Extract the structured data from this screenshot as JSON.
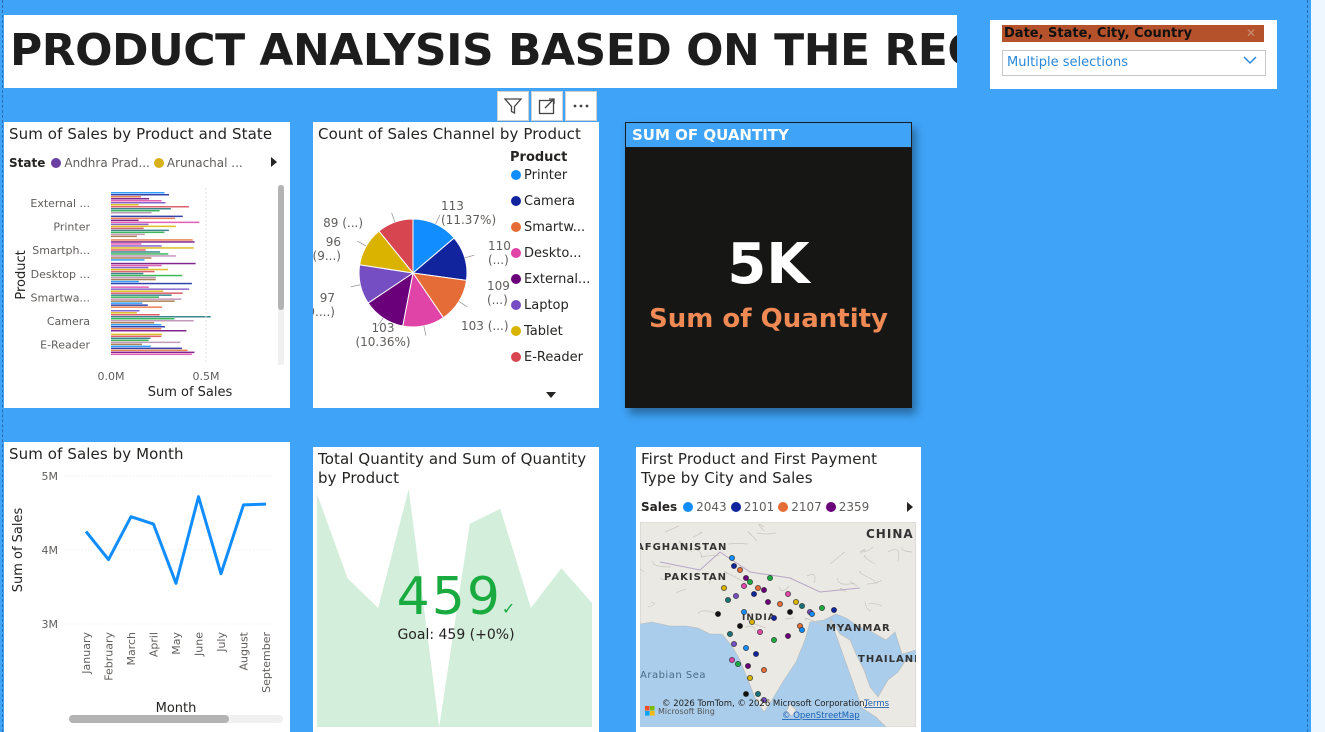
{
  "page_title": "PRODUCT ANALYSIS BASED ON THE REGION",
  "slicer": {
    "header": "Date, State, City, Country",
    "value": "Multiple selections"
  },
  "toolbar": {
    "icons": [
      "filter-icon",
      "focus-mode-icon",
      "more-options-icon"
    ]
  },
  "bar_visual": {
    "title": "Sum of Sales by Product and State",
    "legend_title": "State",
    "legend_items": [
      {
        "label": "Andhra Prad...",
        "color": "#6b3fa0"
      },
      {
        "label": "Arunachal ...",
        "color": "#d6b11a"
      }
    ]
  },
  "pie_visual": {
    "title": "Count of Sales Channel by Product",
    "legend_title": "Product",
    "legend_items": [
      {
        "label": "Printer",
        "color": "#118dff"
      },
      {
        "label": "Camera",
        "color": "#12239e"
      },
      {
        "label": "Smartw...",
        "color": "#e66c37"
      },
      {
        "label": "Deskto...",
        "color": "#e044a7"
      },
      {
        "label": "External...",
        "color": "#6b007b"
      },
      {
        "label": "Laptop",
        "color": "#744ec2"
      },
      {
        "label": "Tablet",
        "color": "#d9b300"
      },
      {
        "label": "E-Reader",
        "color": "#d64550"
      }
    ]
  },
  "kpi_card": {
    "header": "SUM OF QUANTITY",
    "value": "5K",
    "label": "Sum of Quantity"
  },
  "line_visual": {
    "title": "Sum of Sales by Month"
  },
  "goal_visual": {
    "title_line1": "Total Quantity and Sum of Quantity",
    "title_line2": "by Product",
    "value": "459",
    "goal": "Goal: 459 (+0%)"
  },
  "map_visual": {
    "title_line1": "First Product and First Payment",
    "title_line2": "Type by City and Sales",
    "legend_title": "Sales",
    "legend_items": [
      {
        "label": "2043",
        "color": "#118dff"
      },
      {
        "label": "2101",
        "color": "#12239e"
      },
      {
        "label": "2107",
        "color": "#e66c37"
      },
      {
        "label": "2359",
        "color": "#6b007b"
      }
    ],
    "places": [
      "AFGHANISTAN",
      "CHINA",
      "PAKISTAN",
      "INDIA",
      "MYANMAR",
      "THAILAND",
      "Arabian Sea"
    ],
    "attribution": "© 2026 TomTom, © 2026 Microsoft Corporation,",
    "terms": "Terms",
    "osm": "© OpenStreetMap",
    "bing": "Microsoft Bing"
  },
  "chart_data": [
    {
      "type": "bar",
      "title": "Sum of Sales by Product and State",
      "categories": [
        "External ...",
        "Printer",
        "Smartph...",
        "Desktop ...",
        "Smartwa...",
        "Camera",
        "E-Reader"
      ],
      "xlabel": "Sum of Sales",
      "ylabel": "Product",
      "xticks": [
        "0.0M",
        "0.5M"
      ],
      "xlim": [
        0,
        0.7
      ],
      "legend_title": "State",
      "legend": "top"
    },
    {
      "type": "pie",
      "title": "Count of Sales Channel by Product",
      "slices": [
        {
          "name": "Printer",
          "value": 113,
          "label": "113",
          "label2": "(11.37%)"
        },
        {
          "name": "Camera",
          "value": 110,
          "label": "110",
          "label2": "(...)"
        },
        {
          "name": "Smartw...",
          "value": 109,
          "label": "109",
          "label2": "(...)"
        },
        {
          "name": "Deskto...",
          "value": 103,
          "label": "103 (...)",
          "label2": ""
        },
        {
          "name": "External...",
          "value": 103,
          "label": "103",
          "label2": "(10.36%)"
        },
        {
          "name": "Laptop",
          "value": 97,
          "label": "97",
          "label2": "(9....)"
        },
        {
          "name": "Tablet",
          "value": 96,
          "label": "96",
          "label2": "(9...)"
        },
        {
          "name": "E-Reader",
          "value": 89,
          "label": "89 (...)",
          "label2": ""
        }
      ],
      "legend": "right"
    },
    {
      "type": "line",
      "title": "Sum of Sales by Month",
      "categories": [
        "January",
        "February",
        "March",
        "April",
        "May",
        "June",
        "July",
        "August",
        "September"
      ],
      "values": [
        4.25,
        3.87,
        4.45,
        4.35,
        3.55,
        4.72,
        3.68,
        4.61,
        4.62
      ],
      "yticks": [
        "5M",
        "4M",
        "3M"
      ],
      "ylim": [
        3,
        5
      ],
      "xlabel": "Month",
      "ylabel": "Sum of Sales"
    },
    {
      "type": "area",
      "title": "Total Quantity and Sum of Quantity by Product",
      "values": [
        470,
        300,
        240,
        480,
        0,
        410,
        440,
        240,
        320,
        250
      ]
    }
  ]
}
